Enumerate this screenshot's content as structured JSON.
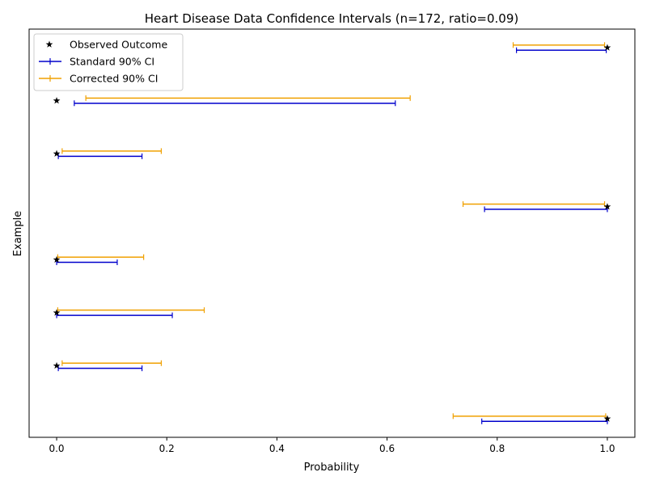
{
  "chart_data": {
    "type": "interval",
    "title": "Heart Disease Data Confidence Intervals (n=172, ratio=0.09)",
    "xlabel": "Probability",
    "ylabel": "Example",
    "xlim": [
      -0.05,
      1.05
    ],
    "ylim": [
      -0.35,
      7.35
    ],
    "xticks": [
      "0.0",
      "0.2",
      "0.4",
      "0.6",
      "0.8",
      "1.0"
    ],
    "xtick_values": [
      0.0,
      0.2,
      0.4,
      0.6,
      0.8,
      1.0
    ],
    "grid": false,
    "legend_position": "top-left",
    "legend": [
      {
        "label": "Observed Outcome",
        "color": "#000000",
        "marker": "star"
      },
      {
        "label": "Standard 90% CI",
        "color": "#0000cc",
        "marker": "line"
      },
      {
        "label": "Corrected 90% CI",
        "color": "#f0a000",
        "marker": "line"
      }
    ],
    "examples": [
      {
        "outcome": 1,
        "standard": [
          0.772,
          1.0
        ],
        "corrected": [
          0.72,
          0.997
        ]
      },
      {
        "outcome": 0,
        "standard": [
          0.003,
          0.155
        ],
        "corrected": [
          0.01,
          0.19
        ]
      },
      {
        "outcome": 0,
        "standard": [
          0.0,
          0.21
        ],
        "corrected": [
          0.002,
          0.268
        ]
      },
      {
        "outcome": 0,
        "standard": [
          0.0,
          0.11
        ],
        "corrected": [
          0.002,
          0.158
        ]
      },
      {
        "outcome": 1,
        "standard": [
          0.777,
          1.0
        ],
        "corrected": [
          0.738,
          0.995
        ]
      },
      {
        "outcome": 0,
        "standard": [
          0.003,
          0.155
        ],
        "corrected": [
          0.01,
          0.19
        ]
      },
      {
        "outcome": 0,
        "standard": [
          0.032,
          0.615
        ],
        "corrected": [
          0.053,
          0.642
        ]
      },
      {
        "outcome": 1,
        "standard": [
          0.835,
          0.998
        ],
        "corrected": [
          0.829,
          0.995
        ]
      }
    ]
  }
}
